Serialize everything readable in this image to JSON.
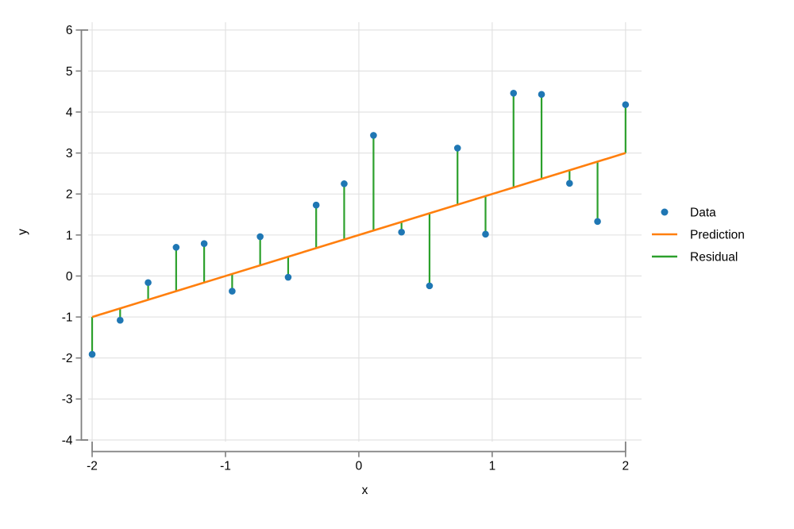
{
  "chart_data": {
    "type": "scatter",
    "title": "",
    "xlabel": "x",
    "ylabel": "y",
    "xlim": [
      -2.03,
      2.12
    ],
    "ylim": [
      -4.04,
      6.19
    ],
    "x_ticks": [
      -2,
      -1,
      0,
      1,
      2
    ],
    "y_ticks": [
      -4,
      -3,
      -2,
      -1,
      0,
      1,
      2,
      3,
      4,
      5,
      6
    ],
    "grid": true,
    "series": [
      {
        "name": "Data",
        "type": "scatter",
        "color": "#1f77b4",
        "x": [
          -2.0,
          -1.79,
          -1.58,
          -1.37,
          -1.16,
          -0.95,
          -0.74,
          -0.53,
          -0.32,
          -0.11,
          0.11,
          0.32,
          0.53,
          0.74,
          0.95,
          1.16,
          1.37,
          1.58,
          1.79,
          2.0
        ],
        "y": [
          -1.91,
          -1.08,
          -0.16,
          0.7,
          0.79,
          -0.37,
          0.96,
          -0.03,
          1.73,
          2.25,
          3.43,
          1.07,
          -0.24,
          3.12,
          1.02,
          4.46,
          4.43,
          2.26,
          1.33,
          4.18
        ]
      },
      {
        "name": "Prediction",
        "type": "line",
        "color": "#ff7f0e",
        "x": [
          -2,
          2
        ],
        "y": [
          -1,
          3
        ]
      },
      {
        "name": "Residual",
        "type": "vertical-segments",
        "color": "#2ca02c",
        "note": "vertical segment from each data point to the prediction line"
      }
    ],
    "legend": {
      "position": "center-right",
      "entries": [
        {
          "label": "Data",
          "marker": "dot",
          "color": "#1f77b4"
        },
        {
          "label": "Prediction",
          "marker": "line",
          "color": "#ff7f0e"
        },
        {
          "label": "Residual",
          "marker": "line",
          "color": "#2ca02c"
        }
      ]
    },
    "style": {
      "grid_color": "#e0e0e0",
      "spine_color": "#808080",
      "tick_label_color": "#000000",
      "background": "#ffffff"
    }
  }
}
